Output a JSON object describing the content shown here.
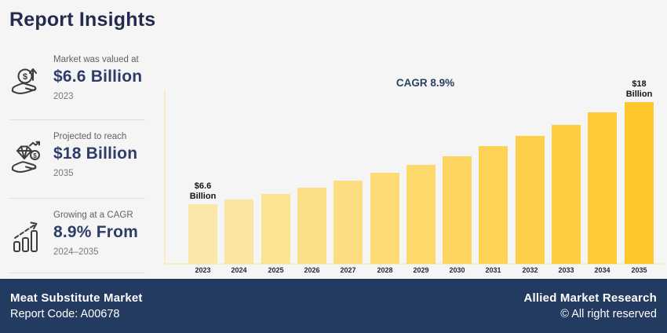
{
  "header": {
    "title": "Report Insights"
  },
  "sidebar": {
    "items": [
      {
        "icon": "hand-coin-growth-icon",
        "label": "Market was valued at",
        "value": "$6.6 Billion",
        "period": "2023"
      },
      {
        "icon": "hand-diamond-coin-icon",
        "label": "Projected to reach",
        "value": "$18 Billion",
        "period": "2035"
      },
      {
        "icon": "growth-bars-arrow-icon",
        "label": "Growing at a CAGR",
        "value": "8.9% From",
        "period": "2024–2035"
      }
    ]
  },
  "chart_data": {
    "type": "bar",
    "title": "CAGR 8.9%",
    "categories": [
      "2023",
      "2024",
      "2025",
      "2026",
      "2027",
      "2028",
      "2029",
      "2030",
      "2031",
      "2032",
      "2033",
      "2034",
      "2035"
    ],
    "values": [
      6.6,
      7.2,
      7.8,
      8.5,
      9.3,
      10.1,
      11.0,
      12.0,
      13.1,
      14.2,
      15.5,
      16.9,
      18.0
    ],
    "unit": "$ Billion",
    "ylim": [
      0,
      19
    ],
    "grid": false,
    "legend": "none",
    "bar_labels": [
      {
        "index": 0,
        "text": "$6.6\nBillion"
      },
      {
        "index": 12,
        "text": "$18\nBillion"
      }
    ],
    "bar_color_start": "#FBE8A8",
    "bar_color_end": "#FFC72C",
    "axis_color": "#F6ECC6"
  },
  "footer": {
    "market_name": "Meat Substitute Market",
    "report_code": "Report Code: A00678",
    "company": "Allied Market Research",
    "copyright": "© All right reserved"
  },
  "colors": {
    "background": "#F5F5F6",
    "title_navy": "#232C4E",
    "value_navy": "#2E3D68",
    "footer_navy": "#243B61",
    "muted_gray": "#626262"
  }
}
